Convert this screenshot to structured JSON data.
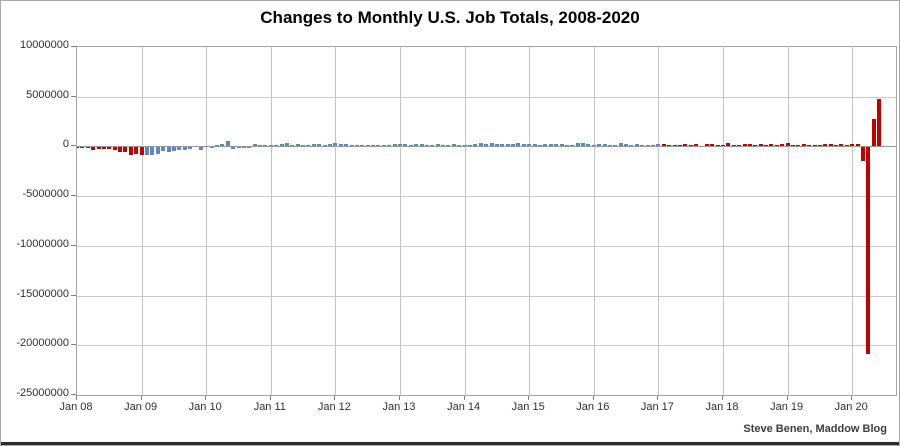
{
  "title": "Changes to Monthly U.S. Job Totals, 2008-2020",
  "footer": {
    "credit": "Steve Benen, Maddow Blog"
  },
  "palette": {
    "red": "#C00000",
    "blue": "#5E88BE"
  },
  "chart_data": {
    "type": "bar",
    "title": "Changes to Monthly U.S. Job Totals, 2008-2020",
    "xlabel": "",
    "ylabel": "",
    "grid": true,
    "legend": "none",
    "ylim": [
      -25000000,
      10000000
    ],
    "y_ticks": [
      10000000,
      5000000,
      0,
      -5000000,
      -10000000,
      -15000000,
      -20000000,
      -25000000
    ],
    "y_tick_labels": [
      "10000000",
      "5000000",
      "0",
      "-5000000",
      "-10000000",
      "-15000000",
      "-20000000",
      "-25000000"
    ],
    "x_tick_labels": [
      "Jan 08",
      "Jan 09",
      "Jan 10",
      "Jan 11",
      "Jan 12",
      "Jan 13",
      "Jan 14",
      "Jan 15",
      "Jan 16",
      "Jan 17",
      "Jan 18",
      "Jan 19",
      "Jan 20"
    ],
    "start_month": "Jan 2008",
    "end_month": "Jun 2020",
    "units": "monthly change in U.S. jobs; values listed in thousands of jobs",
    "values_thousands": [
      -17,
      -86,
      -78,
      -210,
      -185,
      -165,
      -209,
      -266,
      -452,
      -473,
      -769,
      -695,
      -783,
      -743,
      -800,
      -695,
      -354,
      -467,
      -327,
      -216,
      -227,
      -198,
      -6,
      -283,
      18,
      -50,
      156,
      251,
      516,
      -122,
      -61,
      -42,
      -52,
      257,
      123,
      88,
      42,
      188,
      225,
      346,
      73,
      235,
      70,
      107,
      246,
      202,
      146,
      207,
      338,
      257,
      239,
      75,
      115,
      87,
      143,
      165,
      185,
      160,
      141,
      243,
      197,
      280,
      141,
      203,
      216,
      146,
      140,
      269,
      185,
      189,
      274,
      84,
      144,
      168,
      272,
      310,
      213,
      306,
      232,
      218,
      286,
      200,
      331,
      292,
      201,
      266,
      84,
      251,
      273,
      228,
      277,
      150,
      100,
      344,
      298,
      271,
      126,
      237,
      225,
      153,
      43,
      297,
      291,
      176,
      249,
      124,
      164,
      155,
      216,
      232,
      50,
      175,
      155,
      239,
      190,
      221,
      14,
      271,
      216,
      175,
      176,
      324,
      155,
      175,
      268,
      208,
      178,
      282,
      108,
      277,
      119,
      227,
      312,
      56,
      153,
      216,
      62,
      178,
      166,
      219,
      208,
      185,
      261,
      184,
      214,
      251,
      -1373,
      -20787,
      2725,
      4800
    ],
    "color_segments": [
      {
        "start_index": 0,
        "end_index": 12,
        "color_key": "red"
      },
      {
        "start_index": 13,
        "end_index": 108,
        "color_key": "blue"
      },
      {
        "start_index": 109,
        "end_index": 149,
        "color_key": "red"
      }
    ]
  }
}
